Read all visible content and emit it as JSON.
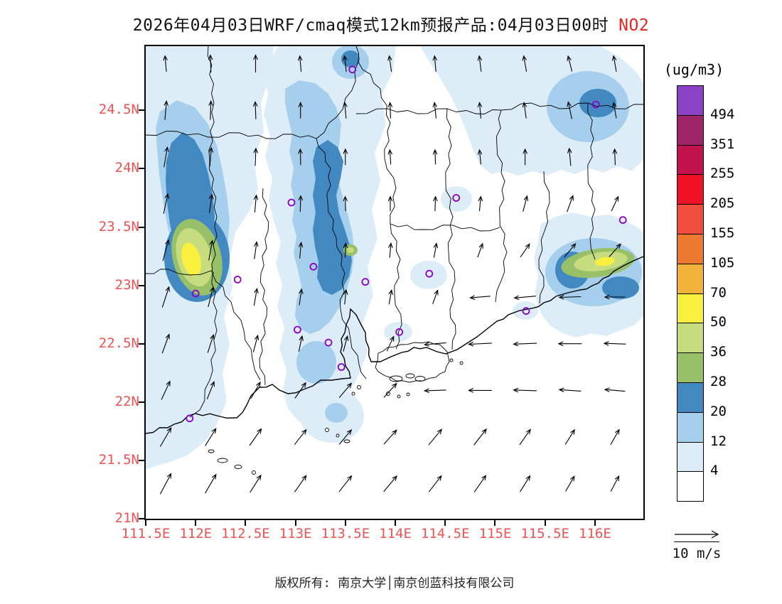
{
  "header": {
    "title_main": "2026年04月03日WRF/cmaq模式12km预报产品:04月03日00时",
    "species": "NO2"
  },
  "colorbar": {
    "unit_label": "(ug/m3)",
    "boundary_labels": [
      "494",
      "351",
      "255",
      "205",
      "155",
      "105",
      "70",
      "50",
      "36",
      "28",
      "20",
      "12",
      "4"
    ],
    "colors_top_to_bottom": [
      "#8d41c6",
      "#a02468",
      "#c3134e",
      "#f01224",
      "#ef4e3e",
      "#ee7a2f",
      "#f3b33b",
      "#f8ef3e",
      "#c6dc7e",
      "#98c068",
      "#4289c2",
      "#a5cfec",
      "#ddedf8",
      "#ffffff"
    ]
  },
  "axes": {
    "tick_label_color": "#ee5252",
    "lat_ticks": [
      {
        "label": "24.5N",
        "value": 24.5
      },
      {
        "label": "24N",
        "value": 24.0
      },
      {
        "label": "23.5N",
        "value": 23.5
      },
      {
        "label": "23N",
        "value": 23.0
      },
      {
        "label": "22.5N",
        "value": 22.5
      },
      {
        "label": "22N",
        "value": 22.0
      },
      {
        "label": "21.5N",
        "value": 21.5
      },
      {
        "label": "21N",
        "value": 21.0
      }
    ],
    "lon_ticks": [
      {
        "label": "111.5E",
        "value": 111.5
      },
      {
        "label": "112E",
        "value": 112.0
      },
      {
        "label": "112.5E",
        "value": 112.5
      },
      {
        "label": "113E",
        "value": 113.0
      },
      {
        "label": "113.5E",
        "value": 113.5
      },
      {
        "label": "114E",
        "value": 114.0
      },
      {
        "label": "114.5E",
        "value": 114.5
      },
      {
        "label": "115E",
        "value": 115.0
      },
      {
        "label": "115.5E",
        "value": 115.5
      },
      {
        "label": "116E",
        "value": 116.0
      }
    ]
  },
  "wind_legend": {
    "label": "10 m/s",
    "speed_ms": 10
  },
  "footer": {
    "text": "版权所有: 南京大学│南京创蓝科技有限公司"
  },
  "chart_data": {
    "type": "heatmap",
    "title": "2026年04月03日WRF/cmaq模式12km预报产品:04月03日00时 NO2",
    "variable": "NO2",
    "unit": "ug/m3",
    "model": "WRF/CMAQ 12km",
    "valid_time": "2026-04-03 00时",
    "lon_range": [
      111.5,
      116.485
    ],
    "lat_range": [
      21.0,
      25.05
    ],
    "levels_ug_m3": [
      4,
      12,
      20,
      28,
      36,
      50,
      70,
      105,
      155,
      205,
      255,
      351,
      494
    ],
    "level_colors_low_to_high": [
      "#ffffff",
      "#ddedf8",
      "#a5cfec",
      "#4289c2",
      "#98c068",
      "#c6dc7e",
      "#f8ef3e",
      "#f3b33b",
      "#ee7a2f",
      "#ef4e3e",
      "#f01224",
      "#c3134e",
      "#a02468",
      "#8d41c6"
    ],
    "hotspots": [
      {
        "lon": 112.0,
        "lat": 23.2,
        "peak_band": "70-105 ug/m3"
      },
      {
        "lon": 116.0,
        "lat": 23.2,
        "peak_band": "50-70 ug/m3"
      },
      {
        "lon": 113.55,
        "lat": 23.3,
        "peak_band": "28-36 ug/m3"
      }
    ],
    "stations_lonlat": [
      [
        113.57,
        24.85
      ],
      [
        116.01,
        24.55
      ],
      [
        112.96,
        23.71
      ],
      [
        114.61,
        23.75
      ],
      [
        116.28,
        23.56
      ],
      [
        112.42,
        23.05
      ],
      [
        113.18,
        23.16
      ],
      [
        113.7,
        23.03
      ],
      [
        112.0,
        22.93
      ],
      [
        114.34,
        23.1
      ],
      [
        115.31,
        22.78
      ],
      [
        113.02,
        22.62
      ],
      [
        113.33,
        22.51
      ],
      [
        114.04,
        22.6
      ],
      [
        113.46,
        22.3
      ],
      [
        111.94,
        21.86
      ]
    ],
    "wind": {
      "reference_ms": 10,
      "arrows_lon_lat_angle_len": [
        [
          111.7,
          24.9,
          95,
          22
        ],
        [
          112.15,
          24.9,
          92,
          24
        ],
        [
          112.6,
          24.9,
          90,
          24
        ],
        [
          113.05,
          24.9,
          95,
          22
        ],
        [
          113.5,
          24.9,
          96,
          22
        ],
        [
          113.95,
          24.9,
          98,
          22
        ],
        [
          114.4,
          24.9,
          95,
          22
        ],
        [
          114.85,
          24.9,
          97,
          22
        ],
        [
          115.3,
          24.9,
          100,
          22
        ],
        [
          115.75,
          24.9,
          104,
          22
        ],
        [
          116.2,
          24.9,
          100,
          22
        ],
        [
          111.7,
          24.5,
          85,
          26
        ],
        [
          112.15,
          24.5,
          88,
          26
        ],
        [
          112.6,
          24.5,
          92,
          24
        ],
        [
          113.05,
          24.5,
          90,
          22
        ],
        [
          113.5,
          24.5,
          95,
          22
        ],
        [
          113.95,
          24.5,
          92,
          22
        ],
        [
          114.4,
          24.5,
          96,
          22
        ],
        [
          114.85,
          24.5,
          95,
          22
        ],
        [
          115.3,
          24.5,
          98,
          22
        ],
        [
          115.75,
          24.5,
          102,
          24
        ],
        [
          116.2,
          24.5,
          100,
          22
        ],
        [
          111.7,
          24.1,
          80,
          28
        ],
        [
          112.15,
          24.1,
          85,
          26
        ],
        [
          112.6,
          24.1,
          88,
          24
        ],
        [
          113.05,
          24.1,
          92,
          22
        ],
        [
          113.5,
          24.1,
          90,
          22
        ],
        [
          113.95,
          24.1,
          94,
          20
        ],
        [
          114.4,
          24.1,
          92,
          20
        ],
        [
          114.85,
          24.1,
          96,
          20
        ],
        [
          115.3,
          24.1,
          90,
          22
        ],
        [
          115.75,
          24.1,
          95,
          24
        ],
        [
          116.2,
          24.1,
          92,
          22
        ],
        [
          111.7,
          23.7,
          78,
          28
        ],
        [
          112.15,
          23.7,
          82,
          26
        ],
        [
          112.6,
          23.7,
          85,
          24
        ],
        [
          113.05,
          23.7,
          88,
          22
        ],
        [
          113.5,
          23.7,
          92,
          20
        ],
        [
          113.95,
          23.7,
          90,
          20
        ],
        [
          114.4,
          23.7,
          88,
          20
        ],
        [
          114.85,
          23.7,
          85,
          20
        ],
        [
          115.3,
          23.7,
          75,
          22
        ],
        [
          115.75,
          23.7,
          70,
          24
        ],
        [
          116.2,
          23.7,
          65,
          22
        ],
        [
          111.7,
          23.3,
          75,
          30
        ],
        [
          112.15,
          23.3,
          80,
          28
        ],
        [
          112.6,
          23.3,
          82,
          24
        ],
        [
          113.05,
          23.3,
          85,
          22
        ],
        [
          113.5,
          23.3,
          88,
          20
        ],
        [
          113.95,
          23.3,
          85,
          20
        ],
        [
          114.4,
          23.3,
          80,
          20
        ],
        [
          114.85,
          23.3,
          70,
          20
        ],
        [
          115.3,
          23.3,
          55,
          22
        ],
        [
          115.75,
          23.3,
          50,
          24
        ],
        [
          116.2,
          23.3,
          48,
          24
        ],
        [
          111.7,
          22.9,
          72,
          30
        ],
        [
          112.15,
          22.9,
          76,
          28
        ],
        [
          112.6,
          22.9,
          80,
          24
        ],
        [
          113.05,
          22.9,
          82,
          22
        ],
        [
          113.5,
          22.9,
          84,
          20
        ],
        [
          113.95,
          22.9,
          80,
          20
        ],
        [
          114.4,
          22.9,
          70,
          20
        ],
        [
          114.85,
          22.9,
          185,
          28
        ],
        [
          115.3,
          22.9,
          185,
          30
        ],
        [
          115.75,
          22.9,
          182,
          30
        ],
        [
          116.2,
          22.9,
          180,
          28
        ],
        [
          111.7,
          22.5,
          70,
          28
        ],
        [
          112.15,
          22.5,
          72,
          26
        ],
        [
          112.6,
          22.5,
          75,
          24
        ],
        [
          113.05,
          22.5,
          78,
          22
        ],
        [
          113.5,
          22.5,
          75,
          22
        ],
        [
          113.95,
          22.5,
          65,
          22
        ],
        [
          114.4,
          22.5,
          185,
          30
        ],
        [
          114.85,
          22.5,
          183,
          32
        ],
        [
          115.3,
          22.5,
          182,
          32
        ],
        [
          115.75,
          22.5,
          180,
          32
        ],
        [
          116.2,
          22.5,
          178,
          30
        ],
        [
          111.7,
          22.1,
          65,
          28
        ],
        [
          112.15,
          22.1,
          68,
          26
        ],
        [
          112.6,
          22.1,
          60,
          26
        ],
        [
          113.05,
          22.1,
          55,
          26
        ],
        [
          113.5,
          22.1,
          50,
          26
        ],
        [
          113.95,
          22.1,
          48,
          26
        ],
        [
          114.4,
          22.1,
          182,
          30
        ],
        [
          114.85,
          22.1,
          180,
          32
        ],
        [
          115.3,
          22.1,
          178,
          32
        ],
        [
          115.75,
          22.1,
          176,
          30
        ],
        [
          116.2,
          22.1,
          175,
          28
        ],
        [
          111.7,
          21.7,
          60,
          30
        ],
        [
          112.15,
          21.7,
          58,
          28
        ],
        [
          112.6,
          21.7,
          55,
          28
        ],
        [
          113.05,
          21.7,
          52,
          26
        ],
        [
          113.5,
          21.7,
          50,
          26
        ],
        [
          113.95,
          21.7,
          48,
          26
        ],
        [
          114.4,
          21.7,
          50,
          28
        ],
        [
          114.85,
          21.7,
          52,
          28
        ],
        [
          115.3,
          21.7,
          55,
          26
        ],
        [
          115.75,
          21.7,
          58,
          24
        ],
        [
          116.2,
          21.7,
          60,
          24
        ],
        [
          111.7,
          21.3,
          62,
          32
        ],
        [
          112.15,
          21.3,
          60,
          30
        ],
        [
          112.6,
          21.3,
          58,
          28
        ],
        [
          113.05,
          21.3,
          55,
          28
        ],
        [
          113.5,
          21.3,
          52,
          28
        ],
        [
          113.95,
          21.3,
          50,
          28
        ],
        [
          114.4,
          21.3,
          52,
          28
        ],
        [
          114.85,
          21.3,
          55,
          28
        ],
        [
          115.3,
          21.3,
          58,
          26
        ],
        [
          115.75,
          21.3,
          60,
          24
        ],
        [
          116.2,
          21.3,
          62,
          24
        ]
      ]
    }
  }
}
